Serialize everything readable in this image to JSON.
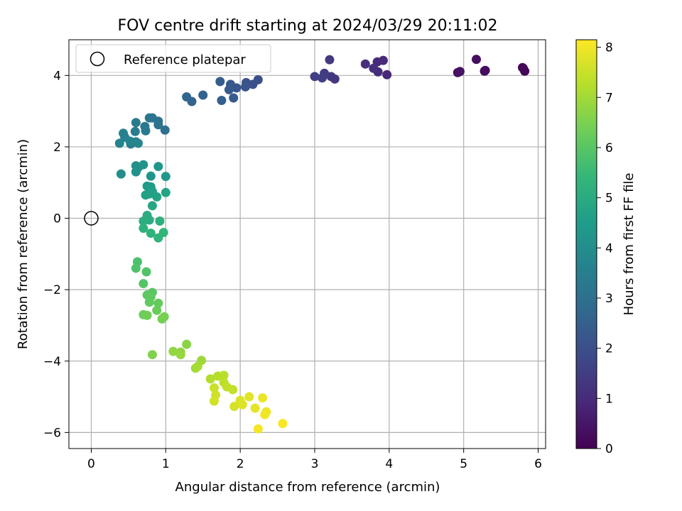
{
  "chart_data": {
    "type": "scatter",
    "title": "FOV centre drift starting at 2024/03/29 20:11:02",
    "xlabel": "Angular distance from reference (arcmin)",
    "ylabel": "Rotation from reference (arcmin)",
    "xlim": [
      -0.3,
      6.1
    ],
    "ylim": [
      -6.45,
      5.0
    ],
    "x_ticks": [
      0,
      1,
      2,
      3,
      4,
      5,
      6
    ],
    "y_ticks": [
      -6,
      -4,
      -2,
      0,
      2,
      4
    ],
    "x_tick_labels": [
      "0",
      "1",
      "2",
      "3",
      "4",
      "5",
      "6"
    ],
    "y_tick_labels": [
      "−6",
      "−4",
      "−2",
      "0",
      "2",
      "4"
    ],
    "grid": true,
    "legend": {
      "placement": "upper-left",
      "entries": [
        "Reference platepar"
      ]
    },
    "reference_point": {
      "x": 0,
      "y": 0
    },
    "colorbar": {
      "label": "Hours from first FF file",
      "colormap": "viridis",
      "range": [
        0,
        8.15
      ],
      "ticks": [
        0,
        1,
        2,
        3,
        4,
        5,
        6,
        7,
        8
      ],
      "tick_labels": [
        "0",
        "1",
        "2",
        "3",
        "4",
        "5",
        "6",
        "7",
        "8"
      ]
    },
    "colormap_stops": [
      "#440154",
      "#482878",
      "#3e4989",
      "#31688e",
      "#26828e",
      "#1f9e89",
      "#35b779",
      "#6ece58",
      "#b5de2b",
      "#fde725"
    ],
    "points": [
      {
        "x": 5.8,
        "y": 4.2,
        "t": 0.05
      },
      {
        "x": 5.82,
        "y": 4.12,
        "t": 0.1
      },
      {
        "x": 5.79,
        "y": 4.22,
        "t": 0.15
      },
      {
        "x": 5.28,
        "y": 4.12,
        "t": 0.2
      },
      {
        "x": 5.29,
        "y": 4.14,
        "t": 0.25
      },
      {
        "x": 5.17,
        "y": 4.45,
        "t": 0.3
      },
      {
        "x": 4.92,
        "y": 4.08,
        "t": 0.35
      },
      {
        "x": 4.95,
        "y": 4.11,
        "t": 0.4
      },
      {
        "x": 3.97,
        "y": 4.02,
        "t": 0.9
      },
      {
        "x": 3.92,
        "y": 4.42,
        "t": 0.95
      },
      {
        "x": 3.84,
        "y": 4.38,
        "t": 1.0
      },
      {
        "x": 3.85,
        "y": 4.1,
        "t": 1.05
      },
      {
        "x": 3.79,
        "y": 4.2,
        "t": 1.1
      },
      {
        "x": 3.68,
        "y": 4.32,
        "t": 1.15
      },
      {
        "x": 3.27,
        "y": 3.9,
        "t": 1.3
      },
      {
        "x": 3.22,
        "y": 3.97,
        "t": 1.35
      },
      {
        "x": 3.2,
        "y": 4.44,
        "t": 1.4
      },
      {
        "x": 3.13,
        "y": 4.06,
        "t": 1.45
      },
      {
        "x": 3.1,
        "y": 3.93,
        "t": 1.5
      },
      {
        "x": 3.0,
        "y": 3.97,
        "t": 1.55
      },
      {
        "x": 2.24,
        "y": 3.88,
        "t": 2.0
      },
      {
        "x": 2.17,
        "y": 3.75,
        "t": 2.05
      },
      {
        "x": 2.08,
        "y": 3.8,
        "t": 2.1
      },
      {
        "x": 2.07,
        "y": 3.68,
        "t": 2.15
      },
      {
        "x": 1.95,
        "y": 3.65,
        "t": 2.2
      },
      {
        "x": 1.87,
        "y": 3.75,
        "t": 2.25
      },
      {
        "x": 1.85,
        "y": 3.6,
        "t": 2.3
      },
      {
        "x": 1.91,
        "y": 3.37,
        "t": 2.35
      },
      {
        "x": 1.73,
        "y": 3.83,
        "t": 2.4
      },
      {
        "x": 1.75,
        "y": 3.3,
        "t": 2.45
      },
      {
        "x": 1.5,
        "y": 3.45,
        "t": 2.55
      },
      {
        "x": 1.35,
        "y": 3.27,
        "t": 2.6
      },
      {
        "x": 1.28,
        "y": 3.4,
        "t": 2.65
      },
      {
        "x": 0.99,
        "y": 2.47,
        "t": 3.0
      },
      {
        "x": 0.9,
        "y": 2.72,
        "t": 3.05
      },
      {
        "x": 0.9,
        "y": 2.62,
        "t": 3.1
      },
      {
        "x": 0.82,
        "y": 2.81,
        "t": 3.15
      },
      {
        "x": 0.78,
        "y": 2.81,
        "t": 3.2
      },
      {
        "x": 0.72,
        "y": 2.57,
        "t": 3.25
      },
      {
        "x": 0.73,
        "y": 2.45,
        "t": 3.3
      },
      {
        "x": 0.6,
        "y": 2.68,
        "t": 3.35
      },
      {
        "x": 0.59,
        "y": 2.43,
        "t": 3.4
      },
      {
        "x": 0.6,
        "y": 2.14,
        "t": 3.45
      },
      {
        "x": 0.53,
        "y": 2.08,
        "t": 3.5
      },
      {
        "x": 0.45,
        "y": 2.27,
        "t": 3.55
      },
      {
        "x": 0.43,
        "y": 2.38,
        "t": 3.6
      },
      {
        "x": 0.38,
        "y": 2.1,
        "t": 3.65
      },
      {
        "x": 0.52,
        "y": 2.16,
        "t": 3.7
      },
      {
        "x": 0.63,
        "y": 2.1,
        "t": 3.75
      },
      {
        "x": 0.4,
        "y": 1.24,
        "t": 4.0
      },
      {
        "x": 0.6,
        "y": 1.47,
        "t": 4.05
      },
      {
        "x": 0.6,
        "y": 1.3,
        "t": 4.1
      },
      {
        "x": 0.63,
        "y": 1.42,
        "t": 4.15
      },
      {
        "x": 0.7,
        "y": 1.5,
        "t": 4.2
      },
      {
        "x": 0.8,
        "y": 1.18,
        "t": 4.25
      },
      {
        "x": 0.9,
        "y": 1.45,
        "t": 4.3
      },
      {
        "x": 1.0,
        "y": 1.17,
        "t": 4.35
      },
      {
        "x": 0.75,
        "y": 0.9,
        "t": 4.45
      },
      {
        "x": 0.8,
        "y": 0.88,
        "t": 4.5
      },
      {
        "x": 0.82,
        "y": 0.75,
        "t": 4.55
      },
      {
        "x": 0.73,
        "y": 0.65,
        "t": 4.6
      },
      {
        "x": 0.78,
        "y": 0.68,
        "t": 4.65
      },
      {
        "x": 0.88,
        "y": 0.6,
        "t": 4.7
      },
      {
        "x": 1.0,
        "y": 0.72,
        "t": 4.75
      },
      {
        "x": 0.82,
        "y": 0.35,
        "t": 4.8
      },
      {
        "x": 0.75,
        "y": 0.08,
        "t": 5.0
      },
      {
        "x": 0.78,
        "y": -0.05,
        "t": 5.05
      },
      {
        "x": 0.7,
        "y": -0.08,
        "t": 5.1
      },
      {
        "x": 0.92,
        "y": -0.08,
        "t": 5.15
      },
      {
        "x": 0.7,
        "y": -0.28,
        "t": 5.2
      },
      {
        "x": 0.8,
        "y": -0.42,
        "t": 5.25
      },
      {
        "x": 0.9,
        "y": -0.55,
        "t": 5.3
      },
      {
        "x": 0.97,
        "y": -0.4,
        "t": 5.35
      },
      {
        "x": 0.62,
        "y": -1.22,
        "t": 5.8
      },
      {
        "x": 0.6,
        "y": -1.4,
        "t": 5.85
      },
      {
        "x": 0.74,
        "y": -1.5,
        "t": 5.9
      },
      {
        "x": 0.7,
        "y": -1.83,
        "t": 5.95
      },
      {
        "x": 0.82,
        "y": -2.08,
        "t": 6.0
      },
      {
        "x": 0.75,
        "y": -2.15,
        "t": 6.05
      },
      {
        "x": 0.8,
        "y": -2.2,
        "t": 6.1
      },
      {
        "x": 0.78,
        "y": -2.35,
        "t": 6.15
      },
      {
        "x": 0.9,
        "y": -2.38,
        "t": 6.2
      },
      {
        "x": 0.88,
        "y": -2.58,
        "t": 6.25
      },
      {
        "x": 0.7,
        "y": -2.7,
        "t": 6.3
      },
      {
        "x": 0.75,
        "y": -2.72,
        "t": 6.35
      },
      {
        "x": 0.95,
        "y": -2.82,
        "t": 6.4
      },
      {
        "x": 0.98,
        "y": -2.76,
        "t": 6.45
      },
      {
        "x": 0.82,
        "y": -3.82,
        "t": 6.55
      },
      {
        "x": 1.28,
        "y": -3.53,
        "t": 6.7
      },
      {
        "x": 1.2,
        "y": -3.75,
        "t": 6.75
      },
      {
        "x": 1.1,
        "y": -3.73,
        "t": 6.8
      },
      {
        "x": 1.2,
        "y": -3.82,
        "t": 6.85
      },
      {
        "x": 1.48,
        "y": -3.98,
        "t": 6.95
      },
      {
        "x": 1.4,
        "y": -4.2,
        "t": 7.0
      },
      {
        "x": 1.43,
        "y": -4.15,
        "t": 7.05
      },
      {
        "x": 1.6,
        "y": -4.5,
        "t": 7.2
      },
      {
        "x": 1.7,
        "y": -4.42,
        "t": 7.25
      },
      {
        "x": 1.78,
        "y": -4.4,
        "t": 7.3
      },
      {
        "x": 1.78,
        "y": -4.6,
        "t": 7.35
      },
      {
        "x": 1.82,
        "y": -4.72,
        "t": 7.4
      },
      {
        "x": 1.9,
        "y": -4.8,
        "t": 7.45
      },
      {
        "x": 1.65,
        "y": -4.75,
        "t": 7.5
      },
      {
        "x": 1.67,
        "y": -4.95,
        "t": 7.55
      },
      {
        "x": 1.65,
        "y": -5.12,
        "t": 7.6
      },
      {
        "x": 1.92,
        "y": -5.27,
        "t": 7.65
      },
      {
        "x": 2.0,
        "y": -5.1,
        "t": 7.7
      },
      {
        "x": 2.03,
        "y": -5.22,
        "t": 7.75
      },
      {
        "x": 2.12,
        "y": -5.0,
        "t": 7.8
      },
      {
        "x": 2.2,
        "y": -5.32,
        "t": 7.85
      },
      {
        "x": 2.3,
        "y": -5.03,
        "t": 7.9
      },
      {
        "x": 2.35,
        "y": -5.42,
        "t": 7.95
      },
      {
        "x": 2.33,
        "y": -5.5,
        "t": 8.0
      },
      {
        "x": 2.24,
        "y": -5.9,
        "t": 8.05
      },
      {
        "x": 2.57,
        "y": -5.75,
        "t": 8.1
      }
    ]
  }
}
